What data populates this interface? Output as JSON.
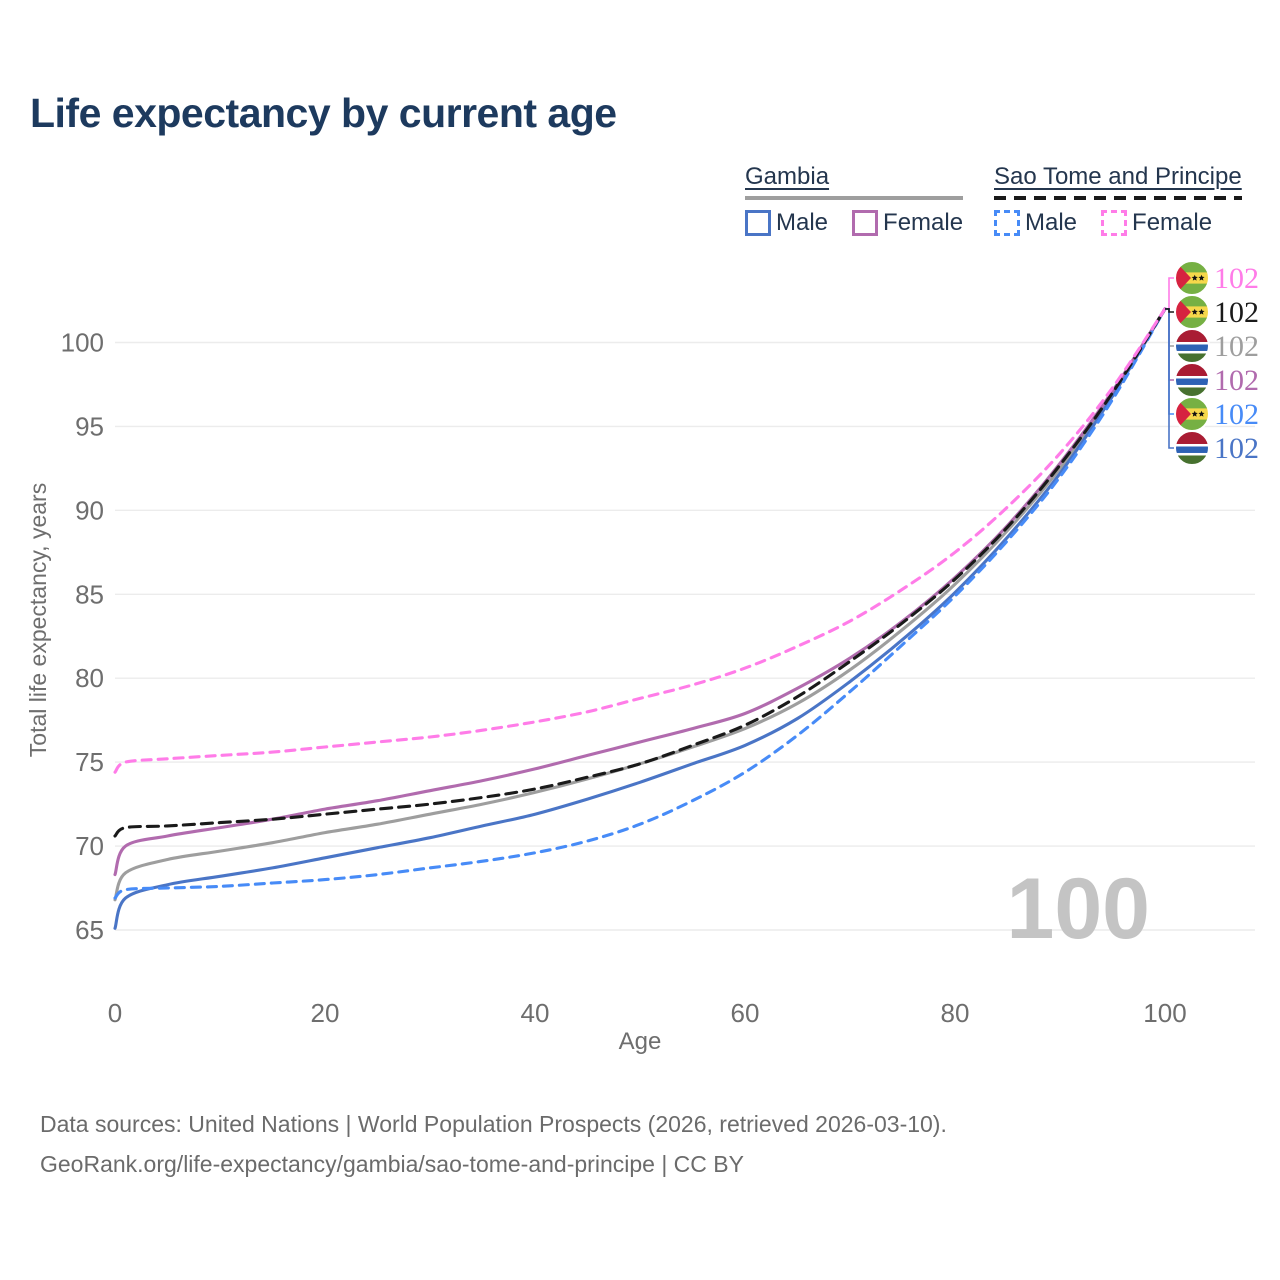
{
  "title": "Life expectancy by current age",
  "legend": {
    "groups": [
      {
        "label": "Gambia",
        "line_style": "solid",
        "bar_color": "#9e9e9e",
        "items": [
          {
            "label": "Male",
            "color": "#4a75c6",
            "dashed": false
          },
          {
            "label": "Female",
            "color": "#b16bae",
            "dashed": false
          }
        ]
      },
      {
        "label": "Sao Tome and Principe",
        "line_style": "dashed",
        "bar_color": "#1a1a1a",
        "items": [
          {
            "label": "Male",
            "color": "#478bf7",
            "dashed": true
          },
          {
            "label": "Female",
            "color": "#ff7ce8",
            "dashed": true
          }
        ]
      }
    ]
  },
  "chart_data": {
    "type": "line",
    "title": "Life expectancy by current age",
    "xlabel": "Age",
    "ylabel": "Total life expectancy, years",
    "xlim": [
      0,
      100
    ],
    "ylim": [
      64,
      103
    ],
    "x_ticks": [
      0,
      20,
      40,
      60,
      80,
      100
    ],
    "y_ticks": [
      65,
      70,
      75,
      80,
      85,
      90,
      95,
      100
    ],
    "grid": "horizontal",
    "age_watermark": "100",
    "x": [
      0,
      1,
      5,
      10,
      15,
      20,
      25,
      30,
      35,
      40,
      45,
      50,
      55,
      60,
      65,
      70,
      75,
      80,
      85,
      90,
      95,
      100
    ],
    "series": [
      {
        "id": "gambia_total",
        "country": "Gambia",
        "sex": "total",
        "color": "#9e9e9e",
        "dash": null,
        "values": [
          66.8,
          68.4,
          69.2,
          69.7,
          70.2,
          70.8,
          71.3,
          71.9,
          72.5,
          73.2,
          74.0,
          74.9,
          75.9,
          77.0,
          78.5,
          80.5,
          82.9,
          85.6,
          88.8,
          92.5,
          96.9,
          102
        ],
        "end_label": "102"
      },
      {
        "id": "gambia_male",
        "country": "Gambia",
        "sex": "male",
        "color": "#4a75c6",
        "dash": null,
        "values": [
          65.1,
          66.9,
          67.7,
          68.2,
          68.7,
          69.3,
          69.9,
          70.5,
          71.2,
          71.9,
          72.8,
          73.8,
          74.9,
          76.0,
          77.6,
          79.8,
          82.3,
          85.1,
          88.4,
          92.2,
          96.8,
          102
        ],
        "end_label": "102"
      },
      {
        "id": "gambia_female",
        "country": "Gambia",
        "sex": "female",
        "color": "#b16bae",
        "dash": null,
        "values": [
          68.3,
          70.0,
          70.6,
          71.1,
          71.6,
          72.2,
          72.7,
          73.3,
          73.9,
          74.6,
          75.4,
          76.2,
          77.0,
          77.9,
          79.4,
          81.2,
          83.4,
          86.0,
          89.1,
          92.8,
          97.1,
          102
        ],
        "end_label": "102"
      },
      {
        "id": "stp_male",
        "country": "Sao Tome and Principe",
        "sex": "male",
        "color": "#478bf7",
        "dash": "9 7",
        "values": [
          66.9,
          67.4,
          67.5,
          67.6,
          67.8,
          68.0,
          68.3,
          68.7,
          69.1,
          69.6,
          70.3,
          71.3,
          72.7,
          74.4,
          76.6,
          79.2,
          82.0,
          84.9,
          88.2,
          92.0,
          96.6,
          102
        ],
        "end_label": "102"
      },
      {
        "id": "stp_total",
        "country": "Sao Tome and Principe",
        "sex": "total",
        "color": "#1a1a1a",
        "dash": "11 7",
        "values": [
          70.6,
          71.1,
          71.2,
          71.4,
          71.6,
          71.9,
          72.2,
          72.5,
          72.9,
          73.4,
          74.1,
          74.9,
          76.0,
          77.2,
          78.9,
          81.0,
          83.3,
          85.9,
          89.0,
          92.7,
          97.0,
          102
        ],
        "end_label": "102"
      },
      {
        "id": "stp_female",
        "country": "Sao Tome and Principe",
        "sex": "female",
        "color": "#ff7ce8",
        "dash": "9 7",
        "values": [
          74.4,
          75.0,
          75.2,
          75.4,
          75.6,
          75.9,
          76.2,
          76.5,
          76.9,
          77.4,
          78.0,
          78.8,
          79.6,
          80.6,
          81.9,
          83.4,
          85.3,
          87.5,
          90.2,
          93.4,
          97.3,
          102
        ],
        "end_label": "102"
      }
    ],
    "end_labels": [
      {
        "series": "stp_female",
        "flag": "sao_tome_and_principe",
        "value": "102",
        "color": "#ff7ce8"
      },
      {
        "series": "stp_total",
        "flag": "sao_tome_and_principe",
        "value": "102",
        "color": "#1a1a1a"
      },
      {
        "series": "gambia_total",
        "flag": "gambia",
        "value": "102",
        "color": "#9e9e9e"
      },
      {
        "series": "gambia_female",
        "flag": "gambia",
        "value": "102",
        "color": "#b16bae"
      },
      {
        "series": "stp_male",
        "flag": "sao_tome_and_principe",
        "value": "102",
        "color": "#478bf7"
      },
      {
        "series": "gambia_male",
        "flag": "gambia",
        "value": "102",
        "color": "#4a75c6"
      }
    ],
    "legend_position": "top-right"
  },
  "flags": {
    "gambia": {
      "red": "#a91c33",
      "blue": "#2d62b5",
      "green": "#47712f",
      "white": "#ffffff"
    },
    "sao_tome_and_principe": {
      "green": "#76b043",
      "yellow": "#f6d84b",
      "red": "#d62340",
      "star": "#111111"
    }
  },
  "colors": {
    "title_text": "#1d3a5e",
    "legend_text": "#24364e",
    "axis_text": "#6e6e6e",
    "gridline": "#ececec",
    "watermark": "#c4c4c4",
    "footer_text": "#6b6b6b"
  },
  "footer": {
    "line1": "Data sources: United Nations | World Population Prospects (2026, retrieved 2026-03-10).",
    "line2": "GeoRank.org/life-expectancy/gambia/sao-tome-and-principe | CC BY"
  }
}
